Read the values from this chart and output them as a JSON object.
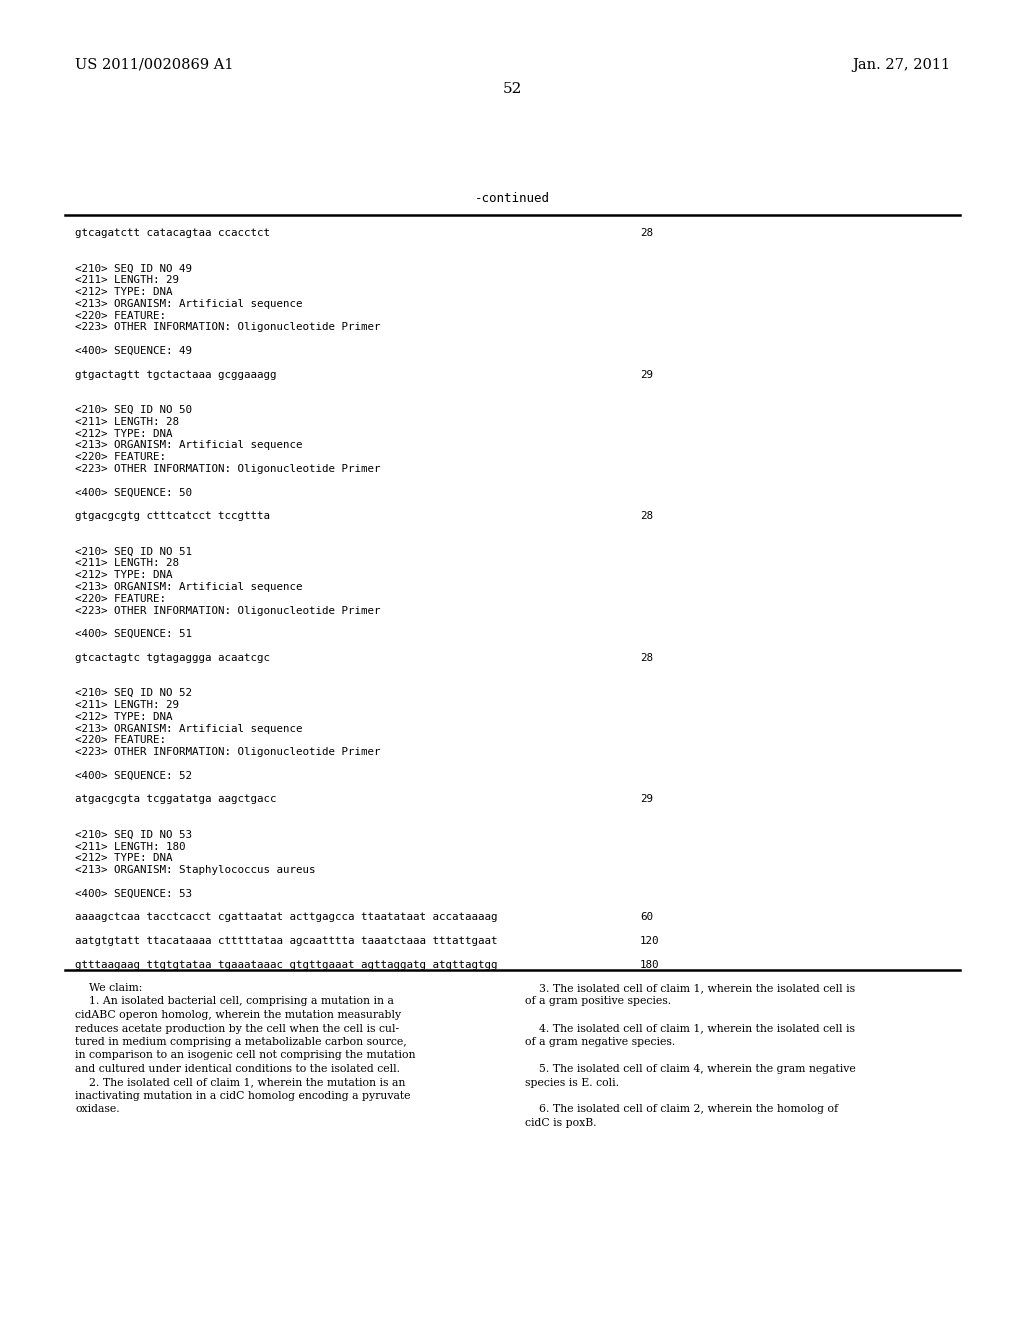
{
  "bg_color": "#ffffff",
  "header_left": "US 2011/0020869 A1",
  "header_right": "Jan. 27, 2011",
  "page_number": "52",
  "continued_label": "-continued",
  "monospace_content": [
    {
      "text": "gtcagatctt catacagtaa ccacctct",
      "num": "28"
    },
    {
      "text": "",
      "num": ""
    },
    {
      "text": "",
      "num": ""
    },
    {
      "text": "<210> SEQ ID NO 49",
      "num": ""
    },
    {
      "text": "<211> LENGTH: 29",
      "num": ""
    },
    {
      "text": "<212> TYPE: DNA",
      "num": ""
    },
    {
      "text": "<213> ORGANISM: Artificial sequence",
      "num": ""
    },
    {
      "text": "<220> FEATURE:",
      "num": ""
    },
    {
      "text": "<223> OTHER INFORMATION: Oligonucleotide Primer",
      "num": ""
    },
    {
      "text": "",
      "num": ""
    },
    {
      "text": "<400> SEQUENCE: 49",
      "num": ""
    },
    {
      "text": "",
      "num": ""
    },
    {
      "text": "gtgactagtt tgctactaaa gcggaaagg",
      "num": "29"
    },
    {
      "text": "",
      "num": ""
    },
    {
      "text": "",
      "num": ""
    },
    {
      "text": "<210> SEQ ID NO 50",
      "num": ""
    },
    {
      "text": "<211> LENGTH: 28",
      "num": ""
    },
    {
      "text": "<212> TYPE: DNA",
      "num": ""
    },
    {
      "text": "<213> ORGANISM: Artificial sequence",
      "num": ""
    },
    {
      "text": "<220> FEATURE:",
      "num": ""
    },
    {
      "text": "<223> OTHER INFORMATION: Oligonucleotide Primer",
      "num": ""
    },
    {
      "text": "",
      "num": ""
    },
    {
      "text": "<400> SEQUENCE: 50",
      "num": ""
    },
    {
      "text": "",
      "num": ""
    },
    {
      "text": "gtgacgcgtg ctttcatcct tccgttta",
      "num": "28"
    },
    {
      "text": "",
      "num": ""
    },
    {
      "text": "",
      "num": ""
    },
    {
      "text": "<210> SEQ ID NO 51",
      "num": ""
    },
    {
      "text": "<211> LENGTH: 28",
      "num": ""
    },
    {
      "text": "<212> TYPE: DNA",
      "num": ""
    },
    {
      "text": "<213> ORGANISM: Artificial sequence",
      "num": ""
    },
    {
      "text": "<220> FEATURE:",
      "num": ""
    },
    {
      "text": "<223> OTHER INFORMATION: Oligonucleotide Primer",
      "num": ""
    },
    {
      "text": "",
      "num": ""
    },
    {
      "text": "<400> SEQUENCE: 51",
      "num": ""
    },
    {
      "text": "",
      "num": ""
    },
    {
      "text": "gtcactagtc tgtagaggga acaatcgc",
      "num": "28"
    },
    {
      "text": "",
      "num": ""
    },
    {
      "text": "",
      "num": ""
    },
    {
      "text": "<210> SEQ ID NO 52",
      "num": ""
    },
    {
      "text": "<211> LENGTH: 29",
      "num": ""
    },
    {
      "text": "<212> TYPE: DNA",
      "num": ""
    },
    {
      "text": "<213> ORGANISM: Artificial sequence",
      "num": ""
    },
    {
      "text": "<220> FEATURE:",
      "num": ""
    },
    {
      "text": "<223> OTHER INFORMATION: Oligonucleotide Primer",
      "num": ""
    },
    {
      "text": "",
      "num": ""
    },
    {
      "text": "<400> SEQUENCE: 52",
      "num": ""
    },
    {
      "text": "",
      "num": ""
    },
    {
      "text": "atgacgcgta tcggatatga aagctgacc",
      "num": "29"
    },
    {
      "text": "",
      "num": ""
    },
    {
      "text": "",
      "num": ""
    },
    {
      "text": "<210> SEQ ID NO 53",
      "num": ""
    },
    {
      "text": "<211> LENGTH: 180",
      "num": ""
    },
    {
      "text": "<212> TYPE: DNA",
      "num": ""
    },
    {
      "text": "<213> ORGANISM: Staphylococcus aureus",
      "num": ""
    },
    {
      "text": "",
      "num": ""
    },
    {
      "text": "<400> SEQUENCE: 53",
      "num": ""
    },
    {
      "text": "",
      "num": ""
    },
    {
      "text": "aaaagctcaa tacctcacct cgattaatat acttgagcca ttaatataat accataaaag",
      "num": "60"
    },
    {
      "text": "",
      "num": ""
    },
    {
      "text": "aatgtgtatt ttacataaaa ctttttataa agcaatttta taaatctaaa tttattgaat",
      "num": "120"
    },
    {
      "text": "",
      "num": ""
    },
    {
      "text": "gtttaagaag ttgtgtataa tgaaataaac gtgttgaaat agttaggatg atgttagtgg",
      "num": "180"
    }
  ],
  "claims_left": [
    "    We claim:",
    "    1. An isolated bacterial cell, comprising a mutation in a",
    "cidABC operon homolog, wherein the mutation measurably",
    "reduces acetate production by the cell when the cell is cul-",
    "tured in medium comprising a metabolizable carbon source,",
    "in comparison to an isogenic cell not comprising the mutation",
    "and cultured under identical conditions to the isolated cell.",
    "    2. The isolated cell of claim 1, wherein the mutation is an",
    "inactivating mutation in a cidC homolog encoding a pyruvate",
    "oxidase."
  ],
  "claims_right": [
    "    3. The isolated cell of claim 1, wherein the isolated cell is",
    "of a gram positive species.",
    "",
    "    4. The isolated cell of claim 1, wherein the isolated cell is",
    "of a gram negative species.",
    "",
    "    5. The isolated cell of claim 4, wherein the gram negative",
    "species is E. coli.",
    "",
    "    6. The isolated cell of claim 2, wherein the homolog of",
    "cidC is poxB."
  ]
}
